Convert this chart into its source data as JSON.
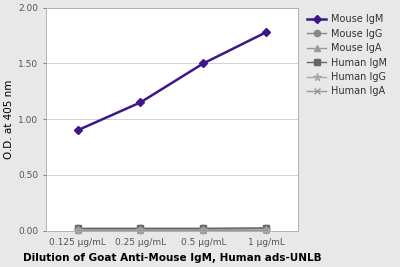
{
  "x_labels": [
    "0.125 μg/mL",
    "0.25 μg/mL",
    "0.5 μg/mL",
    "1 μg/mL"
  ],
  "x_values": [
    1,
    2,
    3,
    4
  ],
  "series": [
    {
      "label": "Mouse IgM",
      "y": [
        0.9,
        1.15,
        1.5,
        1.78
      ],
      "color": "#3d1788",
      "marker": "D",
      "markersize": 4.5,
      "linewidth": 1.8
    },
    {
      "label": "Mouse IgG",
      "y": [
        0.02,
        0.02,
        0.02,
        0.02
      ],
      "color": "#888888",
      "marker": "o",
      "markersize": 4.5,
      "linewidth": 1.0
    },
    {
      "label": "Mouse IgA",
      "y": [
        0.01,
        0.01,
        0.01,
        0.015
      ],
      "color": "#999999",
      "marker": "^",
      "markersize": 4.5,
      "linewidth": 1.0
    },
    {
      "label": "Human IgM",
      "y": [
        0.02,
        0.02,
        0.02,
        0.025
      ],
      "color": "#666666",
      "marker": "s",
      "markersize": 4.5,
      "linewidth": 1.0
    },
    {
      "label": "Human IgG",
      "y": [
        0.01,
        0.01,
        0.01,
        0.01
      ],
      "color": "#aaaaaa",
      "marker": "*",
      "markersize": 5.5,
      "linewidth": 1.0
    },
    {
      "label": "Human IgA",
      "y": [
        0.01,
        0.01,
        0.01,
        0.01
      ],
      "color": "#999999",
      "marker": "x",
      "markersize": 4.5,
      "linewidth": 1.0
    }
  ],
  "ylabel": "O.D. at 405 nm",
  "xlabel": "Dilution of Goat Anti-Mouse IgM, Human ads-UNLB",
  "ylim": [
    0.0,
    2.0
  ],
  "yticks": [
    0.0,
    0.5,
    1.0,
    1.5,
    2.0
  ],
  "plot_bg": "#ffffff",
  "fig_bg": "#e8e8e8",
  "grid_color": "#cccccc",
  "ylabel_fontsize": 7.5,
  "xlabel_fontsize": 7.5,
  "tick_fontsize": 6.5,
  "legend_fontsize": 7.0
}
